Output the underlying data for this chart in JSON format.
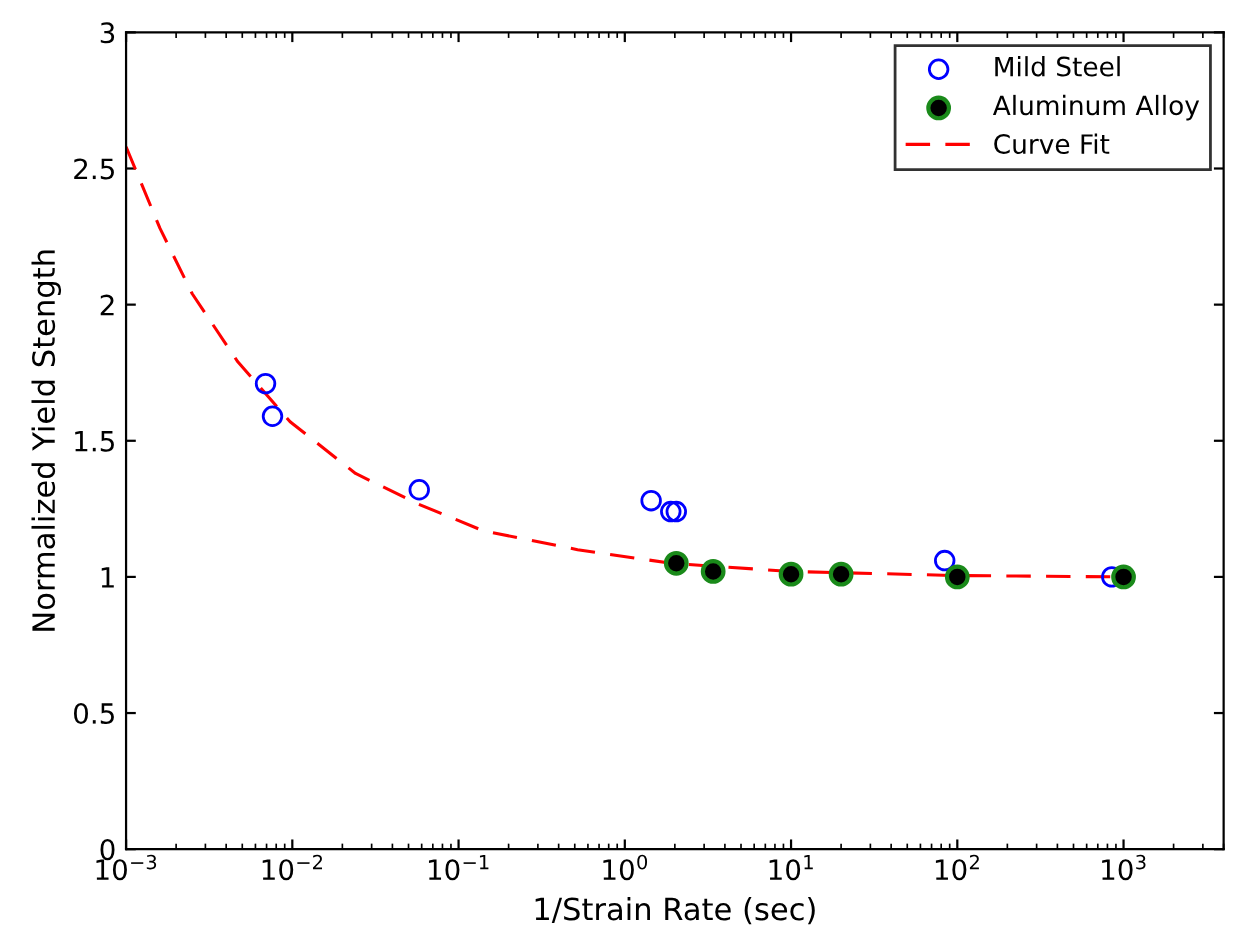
{
  "chart_data": {
    "type": "scatter",
    "xlabel": "1/Strain Rate (sec)",
    "ylabel": "Normalized Yield Stength",
    "log": "x",
    "xlim": [
      0.001,
      4000
    ],
    "ylim": [
      0,
      3
    ],
    "xticks": [
      {
        "value": 0.001,
        "label": "10$^{−3}$"
      },
      {
        "value": 0.01,
        "label": "10$^{−2}$"
      },
      {
        "value": 0.1,
        "label": "10$^{−1}$"
      },
      {
        "value": 1,
        "label": "10$^{0}$"
      },
      {
        "value": 10,
        "label": "10$^{1}$"
      },
      {
        "value": 100,
        "label": "10$^{2}$"
      },
      {
        "value": 1000,
        "label": "10$^{3}$"
      }
    ],
    "yticks": [
      0,
      0.5,
      1,
      1.5,
      2,
      2.5,
      3
    ],
    "grid": false,
    "legend": "top right",
    "series": [
      {
        "name": "Mild Steel",
        "marker": "circle",
        "color": "#0000ff",
        "x": [
          0.0069,
          0.0076,
          0.058,
          1.44,
          1.89,
          2.04,
          84,
          850
        ],
        "values": [
          1.71,
          1.59,
          1.32,
          1.28,
          1.24,
          1.24,
          1.06,
          1.0
        ]
      },
      {
        "name": "Aluminum Alloy",
        "marker": "circle",
        "color": "#000000",
        "x": [
          2.04,
          3.4,
          10,
          20,
          100,
          1000
        ],
        "values": [
          1.05,
          1.02,
          1.01,
          1.01,
          1.0,
          1.0
        ]
      },
      {
        "name": "Curve Fit",
        "type": "line",
        "marker": "none",
        "line_style": "dashed",
        "color": "#ff0000",
        "x": [
          0.001,
          0.0016,
          0.0025,
          0.0047,
          0.0097,
          0.024,
          0.056,
          0.14,
          0.52,
          1.9,
          10,
          100,
          1000
        ],
        "values": [
          2.58,
          2.28,
          2.04,
          1.79,
          1.57,
          1.38,
          1.27,
          1.17,
          1.1,
          1.05,
          1.02,
          1.005,
          1.0
        ]
      }
    ]
  }
}
